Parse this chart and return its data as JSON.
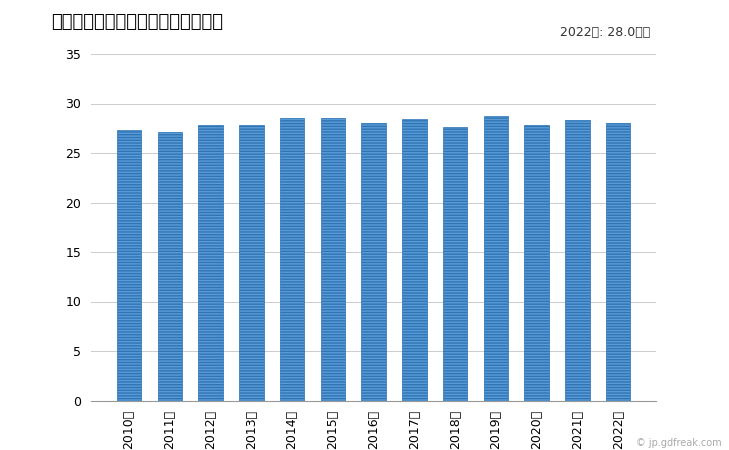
{
  "title": "一般労働者のきまって支給する給与",
  "annotation": "2022年: 28.0万円",
  "years": [
    "2010年",
    "2011年",
    "2012年",
    "2013年",
    "2014年",
    "2015年",
    "2016年",
    "2017年",
    "2018年",
    "2019年",
    "2020年",
    "2021年",
    "2022年"
  ],
  "values": [
    27.3,
    27.1,
    27.8,
    27.8,
    28.5,
    28.5,
    28.0,
    28.4,
    27.6,
    28.7,
    27.8,
    28.3,
    28.0
  ],
  "bar_color_face": "#5b9bd5",
  "bar_color_edge": "#2e75b6",
  "ylim": [
    0,
    35
  ],
  "yticks": [
    0,
    5,
    10,
    15,
    20,
    25,
    30,
    35
  ],
  "background_color": "#ffffff",
  "plot_area_color": "#ffffff",
  "title_fontsize": 13,
  "label_fontsize": 10,
  "annotation_fontsize": 9,
  "tick_fontsize": 9,
  "watermark": "© jp.gdfreak.com"
}
